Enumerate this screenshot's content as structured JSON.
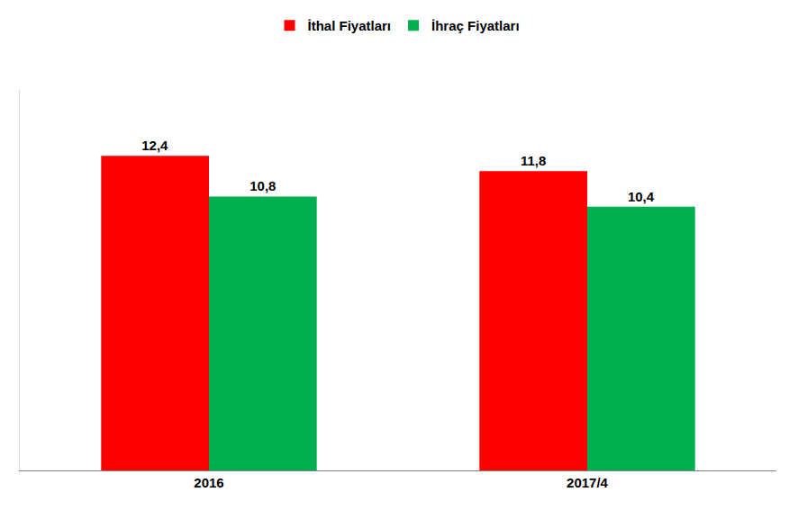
{
  "chart_data": {
    "type": "bar",
    "categories": [
      "2016",
      "2017/4"
    ],
    "series": [
      {
        "name": "İthal Fiyatları",
        "color": "#ff0000",
        "values": [
          12.4,
          11.8
        ],
        "value_labels": [
          "12,4",
          "11,8"
        ]
      },
      {
        "name": "İhraç Fiyatları",
        "color": "#00b050",
        "values": [
          10.8,
          10.4
        ],
        "value_labels": [
          "10,8",
          "10,4"
        ]
      }
    ],
    "ylim": [
      0,
      15
    ],
    "yticks": [],
    "grid": false,
    "legend": "top",
    "data_labels": true,
    "tick_labels": "x"
  }
}
